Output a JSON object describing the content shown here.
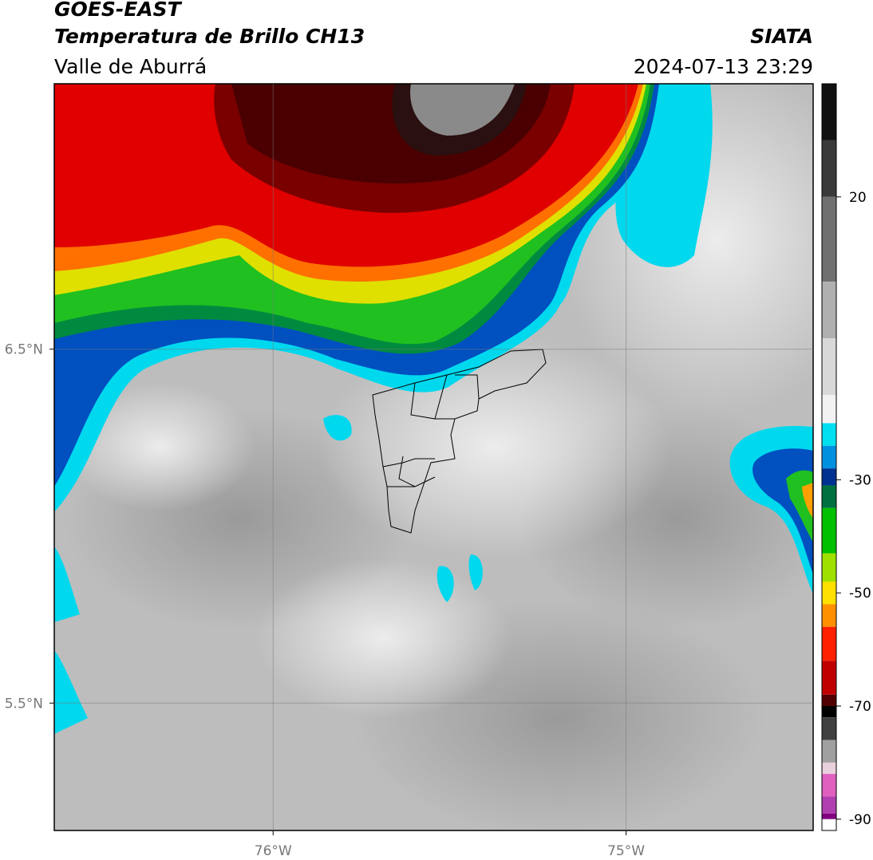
{
  "header": {
    "title": "GOES-EAST",
    "subtitle": "Temperatura de Brillo CH13",
    "region": "Valle de Aburrá",
    "source": "SIATA",
    "datetime": "2024-07-13 23:29"
  },
  "map": {
    "xlim": [
      -76.62,
      -74.47
    ],
    "ylim": [
      5.14,
      7.25
    ],
    "grid": true,
    "xticks": [
      {
        "value": -76,
        "label": "76°W"
      },
      {
        "value": -75,
        "label": "75°W"
      }
    ],
    "yticks": [
      {
        "value": 6.5,
        "label": "6.5°N"
      },
      {
        "value": 5.5,
        "label": "5.5°N"
      }
    ]
  },
  "colorbar": {
    "lim": [
      -92,
      40
    ],
    "ticks": [
      20,
      -30,
      -50,
      -70,
      -90
    ],
    "colormap": [
      {
        "value": 40,
        "color": "#111111"
      },
      {
        "value": 30,
        "color": "#3a3a3a"
      },
      {
        "value": 20,
        "color": "#707070"
      },
      {
        "value": 5,
        "color": "#b0b0b0"
      },
      {
        "value": -5,
        "color": "#d8d8d8"
      },
      {
        "value": -15,
        "color": "#f2f2f2"
      },
      {
        "value": -20,
        "color": "#00e0f0"
      },
      {
        "value": -24,
        "color": "#0090e0"
      },
      {
        "value": -28,
        "color": "#003090"
      },
      {
        "value": -31,
        "color": "#007040"
      },
      {
        "value": -35,
        "color": "#00c000"
      },
      {
        "value": -43,
        "color": "#a0e000"
      },
      {
        "value": -48,
        "color": "#ffe000"
      },
      {
        "value": -52,
        "color": "#ff9000"
      },
      {
        "value": -56,
        "color": "#ff2000"
      },
      {
        "value": -62,
        "color": "#c00000"
      },
      {
        "value": -68,
        "color": "#500000"
      },
      {
        "value": -70,
        "color": "#000000"
      },
      {
        "value": -72,
        "color": "#404040"
      },
      {
        "value": -76,
        "color": "#a0a0a0"
      },
      {
        "value": -80,
        "color": "#e8d0dc"
      },
      {
        "value": -82,
        "color": "#e060c0"
      },
      {
        "value": -86,
        "color": "#b040b0"
      },
      {
        "value": -89,
        "color": "#800080"
      },
      {
        "value": -90,
        "color": "#ffffff"
      }
    ]
  }
}
